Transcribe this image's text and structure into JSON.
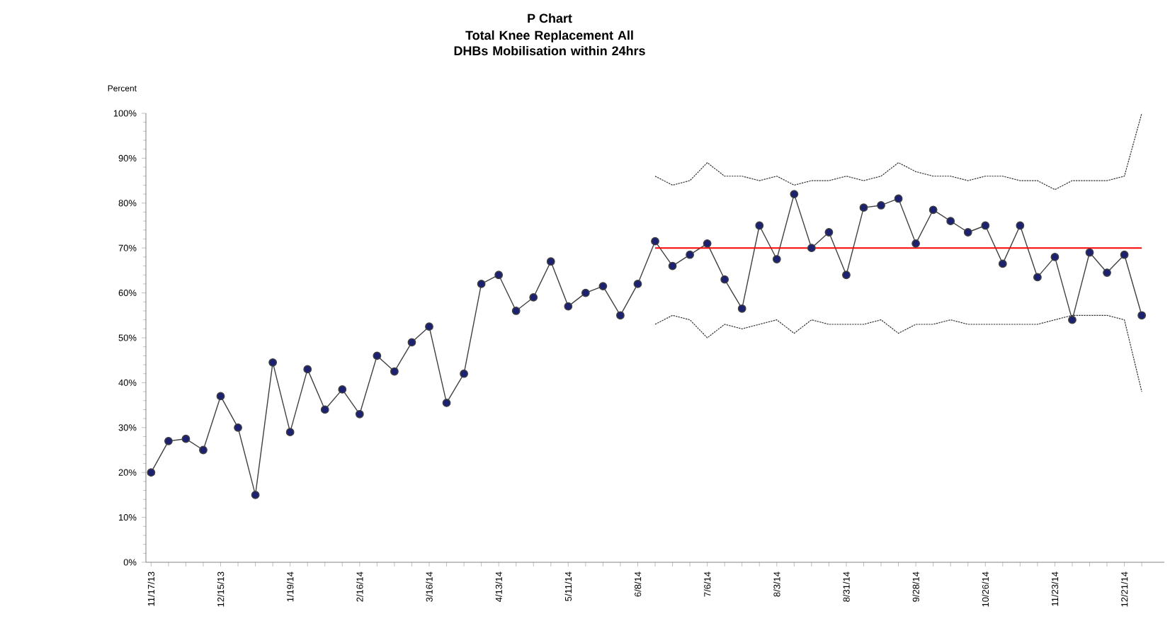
{
  "chart_data": {
    "type": "line",
    "title": "P Chart",
    "subtitle": "Total Knee Replacement All DHBs Mobilisation  within 24hrs",
    "ylabel": "Percent",
    "categories": [
      "11/17/13",
      null,
      null,
      null,
      "12/15/13",
      null,
      null,
      null,
      "1/19/14",
      null,
      null,
      null,
      "2/16/14",
      null,
      null,
      null,
      "3/16/14",
      null,
      null,
      null,
      "4/13/14",
      null,
      null,
      null,
      "5/11/14",
      null,
      null,
      null,
      "6/8/14",
      null,
      null,
      null,
      "7/6/14",
      null,
      null,
      null,
      "8/3/14",
      null,
      null,
      null,
      "8/31/14",
      null,
      null,
      null,
      "9/28/14",
      null,
      null,
      null,
      "10/26/14",
      null,
      null,
      null,
      "11/23/14",
      null,
      null,
      null,
      "12/21/14",
      null
    ],
    "ylim": [
      0,
      100
    ],
    "yticks": [
      {
        "value": 0,
        "label": "0%"
      },
      {
        "value": 10,
        "label": "10%"
      },
      {
        "value": 20,
        "label": "20%"
      },
      {
        "value": 30,
        "label": "30%"
      },
      {
        "value": 40,
        "label": "40%"
      },
      {
        "value": 50,
        "label": "50%"
      },
      {
        "value": 60,
        "label": "60%"
      },
      {
        "value": 70,
        "label": "70%"
      },
      {
        "value": 80,
        "label": "80%"
      },
      {
        "value": 90,
        "label": "90%"
      },
      {
        "value": 100,
        "label": "100%"
      }
    ],
    "series": [
      {
        "color": "#1c2270",
        "marker": "circle",
        "line_style": "solid",
        "values": [
          20,
          27,
          27.5,
          25,
          37,
          30,
          15,
          44.5,
          29,
          43,
          34,
          38.5,
          33,
          46,
          42.5,
          49,
          52.5,
          35.5,
          42,
          62,
          64,
          56,
          59,
          67,
          57,
          60,
          61.5,
          55,
          62,
          71.5,
          66,
          68.5,
          71,
          63,
          56.5,
          75,
          67.5,
          82,
          70,
          73.5,
          64,
          79,
          79.5,
          81,
          71,
          78.5,
          76,
          73.5,
          75,
          66.5,
          75,
          63.5,
          68,
          54,
          69,
          64.5,
          68.5,
          55
        ]
      },
      {
        "type": "line",
        "color": "#ff0000",
        "marker": "none",
        "line_style": "solid",
        "values": [
          null,
          null,
          null,
          null,
          null,
          null,
          null,
          null,
          null,
          null,
          null,
          null,
          null,
          null,
          null,
          null,
          null,
          null,
          null,
          null,
          null,
          null,
          null,
          null,
          null,
          null,
          null,
          null,
          null,
          70,
          70,
          70,
          70,
          70,
          70,
          70,
          70,
          70,
          70,
          70,
          70,
          70,
          70,
          70,
          70,
          70,
          70,
          70,
          70,
          70,
          70,
          70,
          70,
          70,
          70,
          70,
          70,
          70
        ]
      },
      {
        "type": "line",
        "color": "#333333",
        "marker": "none",
        "line_style": "dashed",
        "values": [
          null,
          null,
          null,
          null,
          null,
          null,
          null,
          null,
          null,
          null,
          null,
          null,
          null,
          null,
          null,
          null,
          null,
          null,
          null,
          null,
          null,
          null,
          null,
          null,
          null,
          null,
          null,
          null,
          null,
          86,
          84,
          85,
          89,
          86,
          86,
          85,
          86,
          84,
          85,
          85,
          86,
          85,
          86,
          89,
          87,
          86,
          86,
          85,
          86,
          86,
          85,
          85,
          83,
          85,
          85,
          85,
          86,
          100
        ]
      },
      {
        "type": "line",
        "color": "#333333",
        "marker": "none",
        "line_style": "dashed",
        "values": [
          null,
          null,
          null,
          null,
          null,
          null,
          null,
          null,
          null,
          null,
          null,
          null,
          null,
          null,
          null,
          null,
          null,
          null,
          null,
          null,
          null,
          null,
          null,
          null,
          null,
          null,
          null,
          null,
          null,
          53,
          55,
          54,
          50,
          53,
          52,
          53,
          54,
          51,
          54,
          53,
          53,
          53,
          54,
          51,
          53,
          53,
          54,
          53,
          53,
          53,
          53,
          53,
          54,
          55,
          55,
          55,
          54,
          38
        ]
      }
    ]
  }
}
